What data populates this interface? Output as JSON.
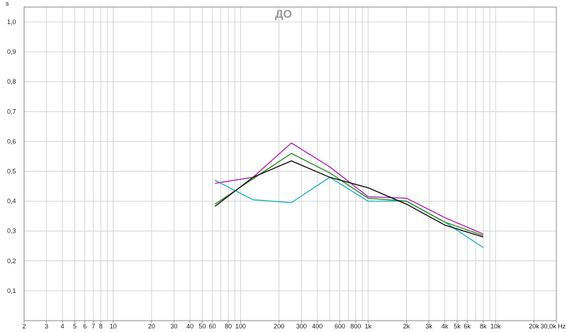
{
  "chart_data": {
    "type": "line",
    "title": "ДО",
    "ylabel": "s",
    "xlabel": "",
    "x_unit": "Hz",
    "x_scale": "log",
    "xlim": [
      2,
      30000
    ],
    "ylim": [
      0,
      1.05
    ],
    "grid": true,
    "y_ticks": [
      {
        "value": 0.1,
        "label": "0,1"
      },
      {
        "value": 0.2,
        "label": "0,2"
      },
      {
        "value": 0.3,
        "label": "0,3"
      },
      {
        "value": 0.4,
        "label": "0,4"
      },
      {
        "value": 0.5,
        "label": "0,5"
      },
      {
        "value": 0.6,
        "label": "0,6"
      },
      {
        "value": 0.7,
        "label": "0,7"
      },
      {
        "value": 0.8,
        "label": "0,8"
      },
      {
        "value": 0.9,
        "label": "0,9"
      },
      {
        "value": 1.0,
        "label": "1,0"
      }
    ],
    "x_ticks": [
      {
        "value": 2,
        "label": "2"
      },
      {
        "value": 3,
        "label": "3"
      },
      {
        "value": 4,
        "label": "4"
      },
      {
        "value": 5,
        "label": "5"
      },
      {
        "value": 6,
        "label": "6"
      },
      {
        "value": 7,
        "label": "7"
      },
      {
        "value": 8,
        "label": "8"
      },
      {
        "value": 10,
        "label": "10"
      },
      {
        "value": 20,
        "label": "20"
      },
      {
        "value": 30,
        "label": "30"
      },
      {
        "value": 40,
        "label": "40"
      },
      {
        "value": 50,
        "label": "50"
      },
      {
        "value": 60,
        "label": "60"
      },
      {
        "value": 80,
        "label": "80"
      },
      {
        "value": 100,
        "label": "100"
      },
      {
        "value": 200,
        "label": "200"
      },
      {
        "value": 300,
        "label": "300"
      },
      {
        "value": 400,
        "label": "400"
      },
      {
        "value": 600,
        "label": "600"
      },
      {
        "value": 800,
        "label": "800"
      },
      {
        "value": 1000,
        "label": "1k"
      },
      {
        "value": 2000,
        "label": "2k"
      },
      {
        "value": 3000,
        "label": "3k"
      },
      {
        "value": 4000,
        "label": "4k"
      },
      {
        "value": 5000,
        "label": "5k"
      },
      {
        "value": 6000,
        "label": "6k"
      },
      {
        "value": 8000,
        "label": "8k"
      },
      {
        "value": 10000,
        "label": "10k"
      },
      {
        "value": 20000,
        "label": "20k"
      },
      {
        "value": 30000,
        "label": "30,0k Hz"
      }
    ],
    "series": [
      {
        "color": "#1fb5bf",
        "x": [
          63,
          125,
          250,
          500,
          1000,
          2000,
          4000,
          8000
        ],
        "values": [
          0.47,
          0.405,
          0.395,
          0.48,
          0.4,
          0.4,
          0.33,
          0.245
        ]
      },
      {
        "color": "#b31eb5",
        "x": [
          63,
          125,
          250,
          500,
          1000,
          2000,
          4000,
          8000
        ],
        "values": [
          0.46,
          0.48,
          0.595,
          0.515,
          0.415,
          0.41,
          0.345,
          0.29
        ]
      },
      {
        "color": "#2a8a1e",
        "x": [
          63,
          125,
          250,
          500,
          1000,
          2000,
          4000,
          8000
        ],
        "values": [
          0.39,
          0.475,
          0.56,
          0.495,
          0.41,
          0.4,
          0.33,
          0.285
        ]
      },
      {
        "color": "#111111",
        "x": [
          63,
          125,
          250,
          500,
          1000,
          2000,
          4000,
          8000
        ],
        "values": [
          0.383,
          0.48,
          0.535,
          0.48,
          0.445,
          0.39,
          0.32,
          0.28
        ]
      }
    ]
  }
}
